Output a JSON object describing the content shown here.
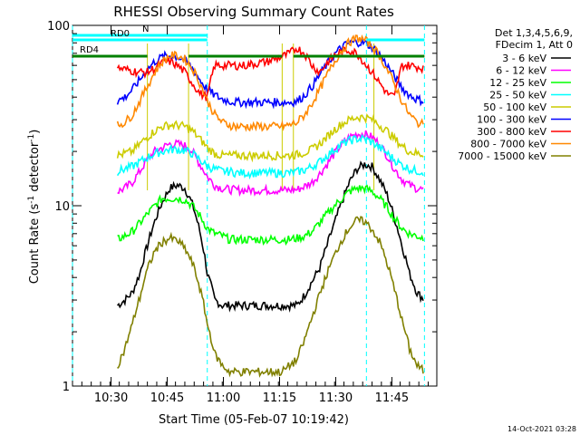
{
  "chart_data": {
    "type": "line",
    "title": "RHESSI Observing Summary Count Rates",
    "xlabel": "Start Time (05-Feb-07 10:19:42)",
    "ylabel": "Count Rate (s⁻¹ detector⁻¹)",
    "ylabel_main": "Count Rate (s",
    "ylabel_sup1": "-1",
    "ylabel_mid": " detector",
    "ylabel_sup2": "-1",
    "ylabel_end": ")",
    "y_scale": "log",
    "ylim": [
      1,
      100
    ],
    "y_ticks": [
      1,
      10,
      100
    ],
    "y_tick_labels": [
      "1",
      "10",
      "100"
    ],
    "xlim": [
      "10:19:42",
      "11:57:00"
    ],
    "x_ticks": [
      "10:30",
      "10:45",
      "11:00",
      "11:15",
      "11:30",
      "11:45"
    ],
    "legend_position": "right",
    "legend_header": [
      "Det 1,3,4,5,6,9,",
      "FDecim 1, Att 0"
    ],
    "footer_date": "14-Oct-2021 03:28",
    "x_minutes": [
      0,
      2,
      4,
      6,
      8,
      10,
      12,
      14,
      16,
      18,
      20,
      22,
      24,
      26,
      28,
      30,
      32,
      34,
      36,
      38,
      40,
      42,
      44,
      46,
      48,
      50,
      52,
      54,
      56,
      58,
      60,
      62,
      64,
      66,
      68,
      70,
      72,
      74,
      76,
      78,
      80,
      82,
      84,
      86,
      88,
      90,
      92,
      94
    ],
    "series": [
      {
        "name": "3 - 6 keV",
        "color": "#000000",
        "values": [
          null,
          null,
          null,
          null,
          null,
          null,
          2.8,
          3.0,
          3.3,
          4.2,
          6,
          8.2,
          10.5,
          12.5,
          13,
          12.5,
          10.2,
          7.2,
          4.2,
          3.0,
          2.8,
          2.8,
          2.8,
          2.8,
          2.8,
          2.8,
          2.8,
          2.8,
          2.8,
          2.8,
          2.8,
          3.2,
          3.8,
          4.5,
          6,
          8,
          10.5,
          13.5,
          16,
          17,
          16.5,
          14,
          11.5,
          8.5,
          6,
          4.2,
          3.3,
          3.0
        ]
      },
      {
        "name": "6 - 12 keV",
        "color": "#ff00ff",
        "values": [
          null,
          null,
          null,
          null,
          null,
          null,
          12,
          12.5,
          13.5,
          15.5,
          18,
          20,
          21,
          22,
          22,
          21.5,
          20,
          17,
          14.5,
          13,
          12.5,
          12.3,
          12.2,
          12.2,
          12.2,
          12.2,
          12.2,
          12.2,
          12.2,
          12.2,
          12.3,
          12.8,
          13.5,
          15,
          17,
          19.5,
          22,
          24,
          25,
          25,
          24,
          22,
          19,
          16,
          14,
          13,
          12.5,
          12.2
        ]
      },
      {
        "name": "12 - 25 keV",
        "color": "#00ff00",
        "values": [
          null,
          null,
          null,
          null,
          null,
          null,
          6.5,
          6.8,
          7.2,
          8,
          9,
          10,
          11,
          11,
          11,
          10.8,
          10,
          8.8,
          7.5,
          7,
          6.8,
          6.5,
          6.5,
          6.5,
          6.5,
          6.5,
          6.5,
          6.5,
          6.5,
          6.5,
          6.6,
          6.8,
          7.2,
          8,
          9,
          10,
          11,
          12,
          12.5,
          12.5,
          12,
          11,
          9.8,
          8.5,
          7.5,
          7,
          6.8,
          6.6
        ]
      },
      {
        "name": "25 - 50 keV",
        "color": "#00ffff",
        "values": [
          null,
          null,
          null,
          null,
          null,
          null,
          15.5,
          16,
          16.5,
          17.5,
          18.5,
          19.5,
          20,
          20.5,
          20.5,
          20.2,
          19.5,
          18,
          16.5,
          16,
          15.5,
          15.5,
          15.2,
          15.2,
          15.2,
          15.2,
          15.2,
          15.2,
          15.2,
          15.2,
          15.4,
          15.8,
          16.5,
          17.5,
          19,
          20.5,
          22,
          23,
          23.5,
          23.5,
          22.5,
          21,
          19.5,
          18,
          16.8,
          16,
          15.6,
          15.4
        ]
      },
      {
        "name": "50 - 100 keV",
        "color": "#cccc00",
        "values": [
          null,
          null,
          null,
          null,
          null,
          null,
          19,
          19.5,
          20,
          22,
          24,
          26,
          27.5,
          28,
          28,
          27.5,
          26,
          23.5,
          21,
          19.5,
          19,
          19,
          19,
          19,
          19,
          19,
          19,
          19,
          19,
          19,
          19.2,
          19.8,
          20.5,
          22,
          24,
          26.5,
          28.5,
          30,
          31,
          31,
          30,
          28,
          26,
          23.5,
          21.5,
          20,
          19.5,
          19.2
        ]
      },
      {
        "name": "100 - 300 keV",
        "color": "#0000ff",
        "values": [
          null,
          null,
          null,
          null,
          null,
          null,
          38,
          40,
          44,
          50,
          57,
          63,
          67,
          68,
          67,
          64,
          58,
          50,
          44,
          41,
          39,
          38,
          37.5,
          37.5,
          37.5,
          37.5,
          37.5,
          37.5,
          37.5,
          37.5,
          38,
          41,
          46,
          53,
          61,
          69,
          76,
          80,
          81,
          80,
          76,
          69,
          60,
          52,
          45,
          41,
          39,
          38
        ]
      },
      {
        "name": "300 - 800 keV",
        "color": "#ff0000",
        "values": [
          null,
          null,
          null,
          null,
          null,
          null,
          58,
          57,
          56,
          55,
          55,
          58,
          62,
          63,
          60,
          55,
          48,
          42,
          40,
          60,
          60,
          60,
          60,
          60,
          61,
          62,
          63,
          65,
          67,
          70,
          75,
          70,
          60,
          55,
          62,
          68,
          72,
          73,
          70,
          62,
          55,
          48,
          42,
          40,
          60,
          60,
          59,
          58
        ]
      },
      {
        "name": "800 - 7000 keV",
        "color": "#ff8800",
        "values": [
          null,
          null,
          null,
          null,
          null,
          null,
          28,
          29,
          32,
          38,
          46,
          55,
          63,
          68,
          68,
          65,
          58,
          48,
          38,
          32,
          29,
          28,
          27.5,
          27.5,
          27.5,
          27.5,
          27.5,
          27.5,
          27.5,
          28,
          29,
          32,
          37,
          44,
          53,
          63,
          73,
          81,
          85,
          83,
          77,
          68,
          57,
          47,
          38,
          32,
          29,
          28
        ]
      },
      {
        "name": "7000 - 15000 keV",
        "color": "#808000",
        "values": [
          null,
          null,
          null,
          null,
          null,
          null,
          1.3,
          1.6,
          2.2,
          3.1,
          4.4,
          5.6,
          6.3,
          6.6,
          6.4,
          5.8,
          4.8,
          3.5,
          2.2,
          1.5,
          1.3,
          1.2,
          1.2,
          1.2,
          1.2,
          1.2,
          1.2,
          1.2,
          1.2,
          1.3,
          1.4,
          1.8,
          2.4,
          3.2,
          4.2,
          5.3,
          6.5,
          7.6,
          8.3,
          8.2,
          7.4,
          6.3,
          4.8,
          3.4,
          2.3,
          1.6,
          1.3,
          1.2
        ]
      }
    ],
    "markers": {
      "N": {
        "label": "N",
        "color": "#00ffff",
        "segments": [
          [
            0,
            36
          ]
        ]
      },
      "RD0": {
        "label": "RD0",
        "color": "#00ffff",
        "segments": [
          [
            0,
            36
          ],
          [
            78.5,
            94
          ]
        ]
      },
      "RD4": {
        "label": "RD4",
        "color": "#008000",
        "segments": [
          [
            0,
            20
          ],
          [
            31,
            56
          ],
          [
            59,
            94
          ]
        ]
      }
    },
    "night_lines_minutes": [
      0,
      36,
      78.5,
      94
    ],
    "saa_lines_minutes": [
      20,
      31,
      56,
      59,
      80.5
    ]
  }
}
